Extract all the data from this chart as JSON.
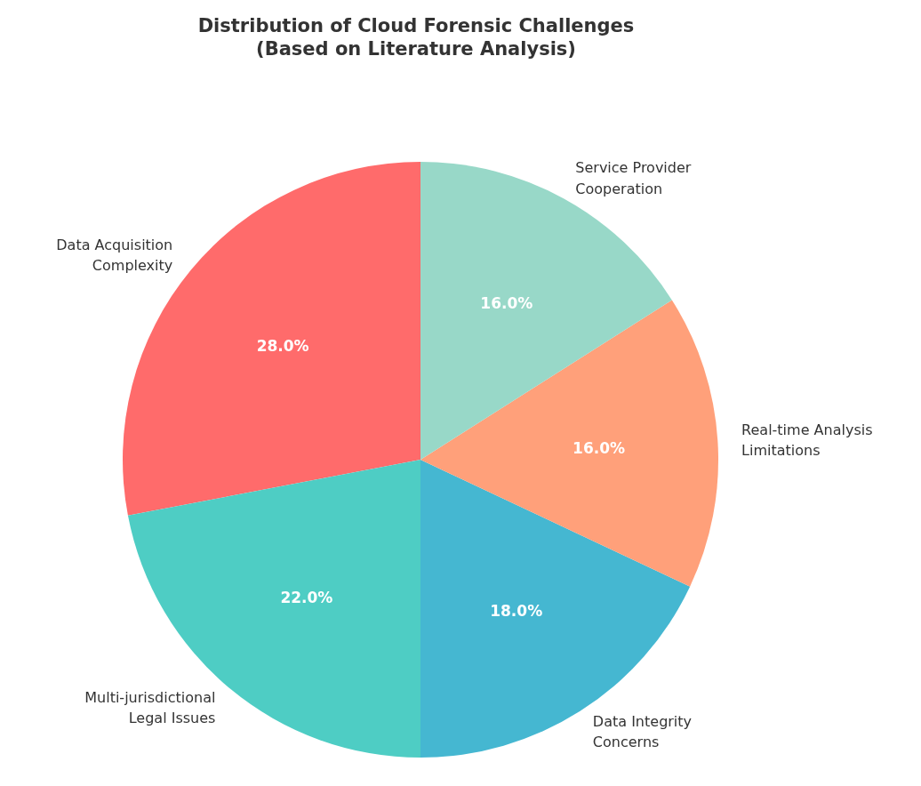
{
  "chart_data": {
    "type": "pie",
    "title": "Distribution of Cloud Forensic Challenges\n(Based on Literature Analysis)",
    "categories": [
      "Data Acquisition\nComplexity",
      "Multi-jurisdictional\nLegal Issues",
      "Data Integrity\nConcerns",
      "Real-time Analysis\nLimitations",
      "Service Provider\nCooperation"
    ],
    "values": [
      28,
      22,
      18,
      16,
      16
    ],
    "value_labels": [
      "28.0%",
      "22.0%",
      "18.0%",
      "16.0%",
      "16.0%"
    ],
    "colors": [
      "#ff6b6b",
      "#4ecdc4",
      "#45b7d1",
      "#ffa07a",
      "#98d8c8"
    ]
  }
}
